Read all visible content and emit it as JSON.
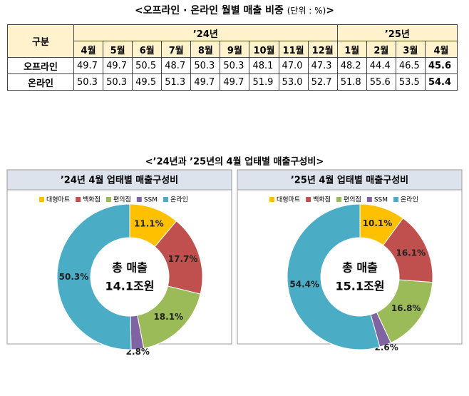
{
  "title": {
    "main": "<오프라인 · 온라인 월별 매출 비중",
    "unit": "(단위 : %)",
    "close": ">"
  },
  "table": {
    "header": "구분",
    "years": [
      {
        "label": "’24년",
        "months": [
          "4월",
          "5월",
          "6월",
          "7월",
          "8월",
          "9월",
          "10월",
          "11월",
          "12월"
        ]
      },
      {
        "label": "’25년",
        "months": [
          "1월",
          "2월",
          "3월",
          "4월"
        ]
      }
    ],
    "rows": [
      {
        "label": "오프라인",
        "values": [
          "49.7",
          "49.7",
          "50.5",
          "48.7",
          "50.3",
          "50.3",
          "48.1",
          "47.0",
          "47.3",
          "48.2",
          "44.4",
          "46.5",
          "45.6"
        ]
      },
      {
        "label": "온라인",
        "values": [
          "50.3",
          "50.3",
          "49.5",
          "51.3",
          "49.7",
          "49.7",
          "51.9",
          "53.0",
          "52.7",
          "51.8",
          "55.6",
          "53.5",
          "54.4"
        ]
      }
    ]
  },
  "section_title": "<’24년과 ’25년의 4월 업태별 매출구성비>",
  "chart_data": [
    {
      "type": "pie",
      "title": "’24년 4월 업태별 매출구성비",
      "categories": [
        "대형마트",
        "백화점",
        "편의점",
        "SSM",
        "온라인"
      ],
      "values": [
        11.1,
        17.7,
        18.1,
        2.8,
        50.3
      ],
      "value_labels": [
        "11.1%",
        "17.7%",
        "18.1%",
        "2.8%",
        "50.3%"
      ],
      "colors": [
        "#ffc000",
        "#c0504d",
        "#9bbb59",
        "#8064a2",
        "#4bacc6"
      ],
      "center_text": [
        "총 매출",
        "14.1조원"
      ]
    },
    {
      "type": "pie",
      "title": "’25년 4월 업태별 매출구성비",
      "categories": [
        "대형마트",
        "백화점",
        "편의점",
        "SSM",
        "온라인"
      ],
      "values": [
        10.1,
        16.1,
        16.8,
        2.6,
        54.4
      ],
      "value_labels": [
        "10.1%",
        "16.1%",
        "16.8%",
        "2.6%",
        "54.4%"
      ],
      "colors": [
        "#ffc000",
        "#c0504d",
        "#9bbb59",
        "#8064a2",
        "#4bacc6"
      ],
      "center_text": [
        "총 매출",
        "15.1조원"
      ]
    }
  ]
}
